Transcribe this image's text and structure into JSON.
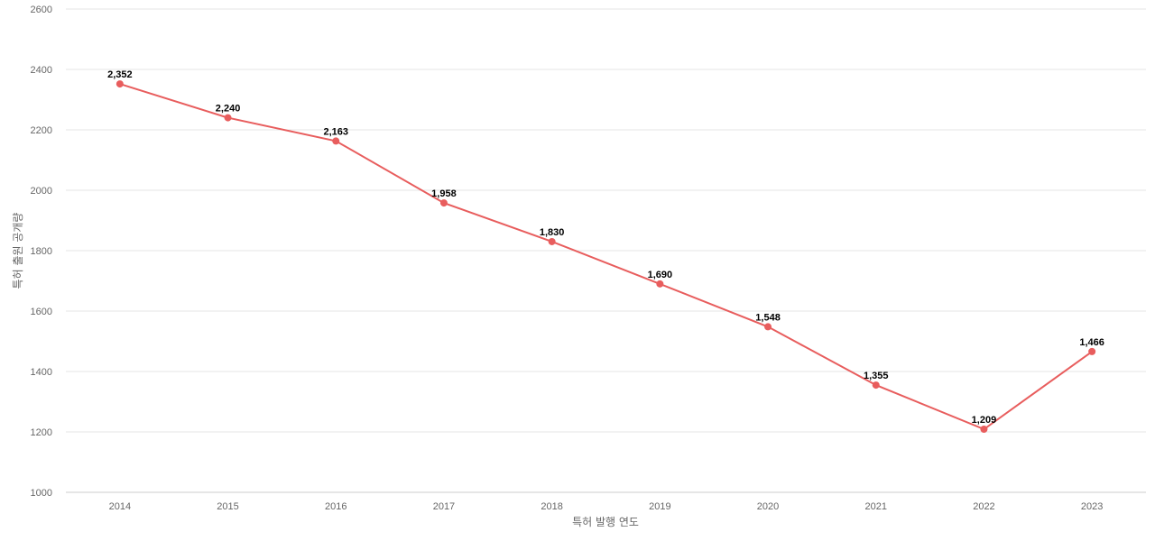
{
  "chart_data": {
    "type": "line",
    "title": "",
    "xlabel": "특허 발행 연도",
    "ylabel": "특허 출원 공개량",
    "ylim": [
      1000,
      2600
    ],
    "yticks": [
      1000,
      1200,
      1400,
      1600,
      1800,
      2000,
      2200,
      2400,
      2600
    ],
    "categories": [
      "2014",
      "2015",
      "2016",
      "2017",
      "2018",
      "2019",
      "2020",
      "2021",
      "2022",
      "2023"
    ],
    "series": [
      {
        "values": [
          2352,
          2240,
          2163,
          1958,
          1830,
          1690,
          1548,
          1355,
          1209,
          1466
        ],
        "labels": [
          "2,352",
          "2,240",
          "2,163",
          "1,958",
          "1,830",
          "1,690",
          "1,548",
          "1,355",
          "1,209",
          "1,466"
        ],
        "color": "#e85d5d"
      }
    ],
    "grid": true,
    "legend": "none"
  }
}
